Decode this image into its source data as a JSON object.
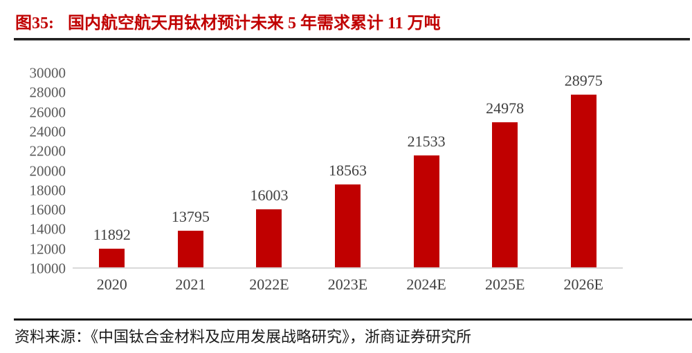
{
  "header": {
    "figure_label": "图35:",
    "figure_title": "国内航空航天用钛材预计未来 5 年需求累计 11 万吨"
  },
  "chart_data": {
    "type": "bar",
    "title": "国内航空航天用钛材预计未来 5 年需求累计 11 万吨",
    "categories": [
      "2020",
      "2021",
      "2022E",
      "2023E",
      "2024E",
      "2025E",
      "2026E"
    ],
    "values": [
      11892,
      13795,
      16003,
      18563,
      21533,
      24978,
      28975
    ],
    "xlabel": "",
    "ylabel": "",
    "ylim": [
      10000,
      30000
    ],
    "ytick_step": 2000,
    "yticks": [
      10000,
      12000,
      14000,
      16000,
      18000,
      20000,
      22000,
      24000,
      26000,
      28000,
      30000
    ],
    "grid": false,
    "legend": false,
    "data_labels": true,
    "bar_color": "#c00000"
  },
  "colors": {
    "accent_red": "#c00000",
    "y_axis_label": "#595959",
    "value_label": "#3f3f3f",
    "baseline": "#d9d9d9",
    "rule": "#1f1f1f",
    "footer_text": "#1a1a1a"
  },
  "footer": {
    "source_text": "资料来源：《中国钛合金材料及应用发展战略研究》，浙商证券研究所"
  }
}
